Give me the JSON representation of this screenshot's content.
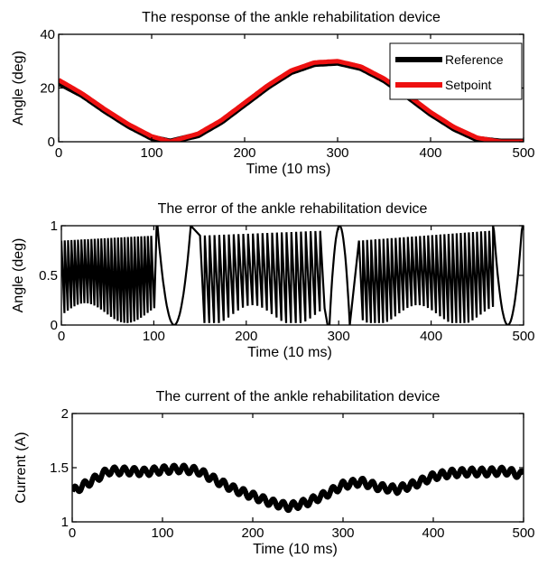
{
  "chart_data": [
    {
      "type": "line",
      "title": "The response of the ankle rehabilitation device",
      "xlabel": "Time (10 ms)",
      "ylabel": "Angle (deg)",
      "xlim": [
        0,
        500
      ],
      "ylim": [
        0,
        40
      ],
      "xticks": [
        "0",
        "100",
        "200",
        "300",
        "400",
        "500"
      ],
      "yticks": [
        "0",
        "20",
        "40"
      ],
      "grid": false,
      "legend": "top-right",
      "series": [
        {
          "name": "Reference",
          "color": "#000000",
          "x": [
            0,
            25,
            50,
            75,
            100,
            120,
            150,
            175,
            200,
            225,
            250,
            275,
            300,
            325,
            350,
            375,
            400,
            425,
            450,
            475,
            500
          ],
          "values": [
            22,
            17.5,
            11.5,
            6,
            1.5,
            0,
            2.5,
            7.5,
            14,
            20.5,
            26,
            29,
            29.5,
            27.5,
            23,
            17,
            10.5,
            5,
            1,
            0,
            0
          ]
        },
        {
          "name": "Setpoint",
          "color": "#ee1111",
          "x": [
            0,
            25,
            50,
            75,
            100,
            120,
            150,
            175,
            200,
            225,
            250,
            275,
            300,
            325,
            350,
            375,
            400,
            425,
            450,
            475,
            500
          ],
          "values": [
            23,
            18,
            12,
            6.5,
            2,
            0,
            3,
            8,
            14.5,
            21,
            26.5,
            29.5,
            30,
            28,
            23.5,
            17.5,
            11,
            5.5,
            1.5,
            0,
            0
          ]
        }
      ]
    },
    {
      "type": "line",
      "title": "The error of the ankle rehabilitation device",
      "xlabel": "Time (10 ms)",
      "ylabel": "Angle (deg)",
      "xlim": [
        0,
        500
      ],
      "ylim": [
        0,
        1
      ],
      "xticks": [
        "0",
        "100",
        "200",
        "300",
        "400",
        "500"
      ],
      "yticks": [
        "0",
        "0.5",
        "1"
      ],
      "grid": false,
      "legend": "none",
      "series": [
        {
          "color": "#000000",
          "style": "sawtooth oscillation between about 0 and 1 deg; dense segments 0-100, 150-285, 320-465; smooth parabolic dips near 120 and 480; narrow peak near 300",
          "x": [
            0,
            50,
            100,
            105,
            120,
            140,
            150,
            215,
            285,
            300,
            320,
            390,
            465,
            480,
            495
          ],
          "values": [
            0.5,
            0.5,
            0.9,
            1,
            0,
            0.95,
            0.8,
            0.5,
            0.9,
            1,
            0.8,
            0.5,
            0.9,
            0,
            0.37
          ]
        }
      ]
    },
    {
      "type": "line",
      "title": "The current of the ankle rehabilitation device",
      "xlabel": "Time (10 ms)",
      "ylabel": "Current (A)",
      "xlim": [
        0,
        500
      ],
      "ylim": [
        1,
        2
      ],
      "xticks": [
        "0",
        "100",
        "200",
        "300",
        "400",
        "500"
      ],
      "yticks": [
        "1",
        "1.5",
        "2"
      ],
      "grid": false,
      "legend": "none",
      "series": [
        {
          "color": "#000000",
          "style": "thick line with small ripple",
          "x": [
            0,
            20,
            40,
            60,
            80,
            100,
            120,
            140,
            160,
            180,
            200,
            220,
            240,
            260,
            280,
            300,
            320,
            340,
            360,
            380,
            400,
            420,
            440,
            460,
            480,
            500
          ],
          "values": [
            1.28,
            1.37,
            1.47,
            1.47,
            1.46,
            1.48,
            1.49,
            1.47,
            1.38,
            1.3,
            1.24,
            1.18,
            1.14,
            1.18,
            1.25,
            1.34,
            1.37,
            1.32,
            1.3,
            1.35,
            1.42,
            1.45,
            1.46,
            1.46,
            1.47,
            1.43
          ]
        }
      ]
    }
  ]
}
